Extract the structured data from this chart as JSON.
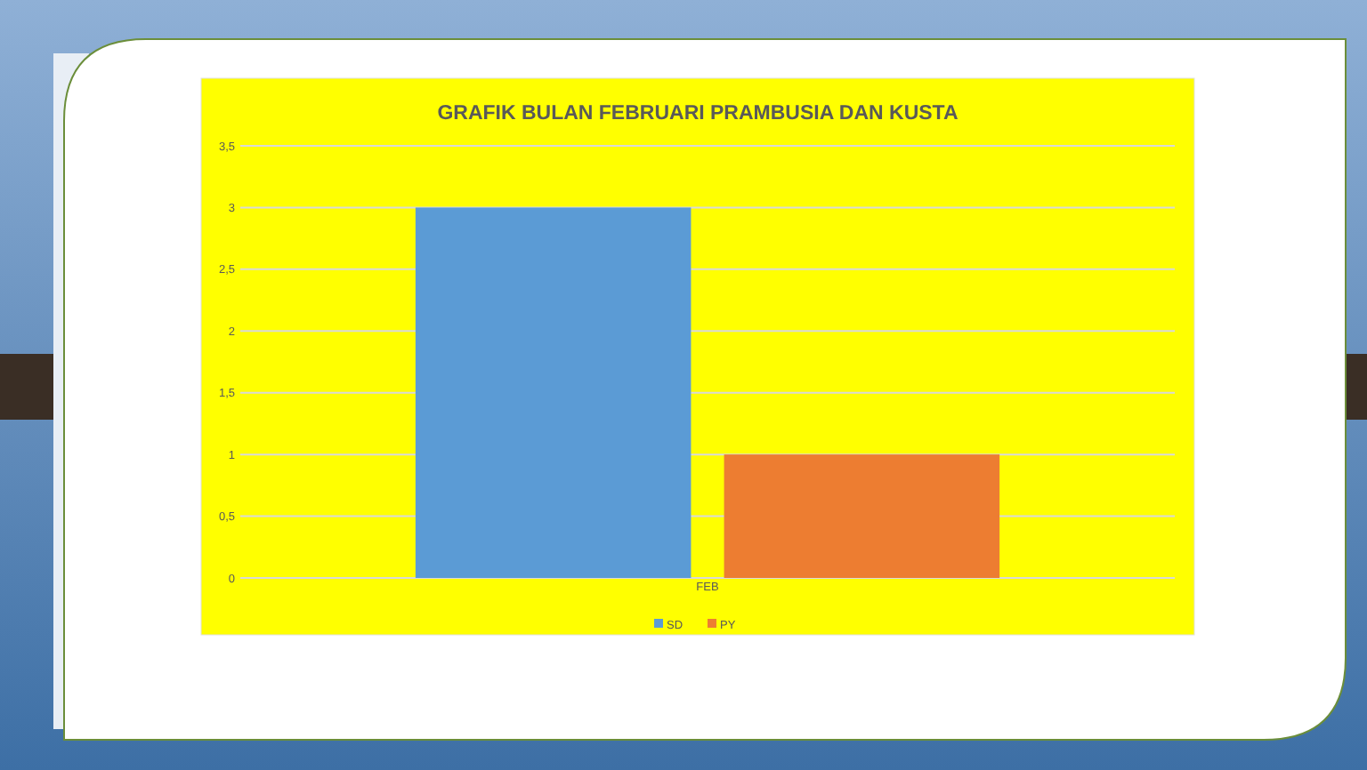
{
  "chart_data": {
    "type": "bar",
    "title": "GRAFIK BULAN FEBRUARI PRAMBUSIA DAN KUSTA",
    "categories": [
      "FEB"
    ],
    "series": [
      {
        "name": "SD",
        "color": "#5b9bd5",
        "values": [
          3
        ]
      },
      {
        "name": "PY",
        "color": "#ed7d31",
        "values": [
          1
        ]
      }
    ],
    "ylim": [
      0,
      3.5
    ],
    "yticks": [
      0,
      {
        "value": 0.5,
        "label": "0,5"
      },
      1,
      {
        "value": 1.5,
        "label": "1,5"
      },
      2,
      {
        "value": 2.5,
        "label": "2,5"
      },
      3,
      {
        "value": 3.5,
        "label": "3,5"
      }
    ],
    "grid": "y",
    "legend": "bottom"
  }
}
